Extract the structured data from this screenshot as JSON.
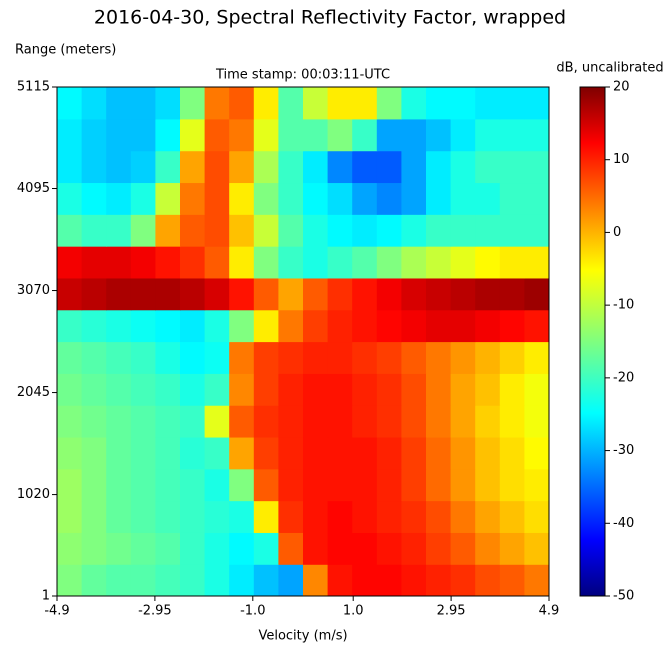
{
  "chart_data": {
    "type": "heatmap",
    "title": "2016-04-30, Spectral Reflectivity Factor, wrapped",
    "subtitle": "Time stamp: 00:03:11-UTC",
    "xlabel": "Velocity (m/s)",
    "ylabel": "Range (meters)",
    "colorbar_label": "dB, uncalibrated",
    "colormap": "jet",
    "xlim": [
      -4.9,
      4.9
    ],
    "xticks": [
      -4.9,
      -2.95,
      {
        "value": -1,
        "label": "-1.0"
      },
      {
        "value": 1,
        "label": "1.0"
      },
      2.95,
      4.9
    ],
    "ylim": [
      1,
      5115
    ],
    "yticks": [
      1,
      1020,
      2045,
      3070,
      4095,
      5115
    ],
    "clim": [
      -50,
      20
    ],
    "cticks": [
      -50,
      -40,
      -30,
      -20,
      -10,
      0,
      10,
      20
    ],
    "z": [
      [
        -15,
        -17,
        -18,
        -18,
        -19,
        -20,
        -22,
        -25,
        -28,
        -30,
        2,
        10,
        11,
        11,
        10,
        9,
        8,
        6,
        5,
        3
      ],
      [
        -14,
        -15,
        -16,
        -17,
        -18,
        -20,
        -22,
        -24,
        -22,
        5,
        10,
        11,
        11,
        10,
        9,
        7,
        5,
        2,
        0,
        -2
      ],
      [
        -13,
        -15,
        -17,
        -18,
        -19,
        -20,
        -21,
        -22,
        -5,
        8,
        10,
        11,
        10,
        9,
        8,
        6,
        3,
        0,
        -2,
        -4
      ],
      [
        -13,
        -15,
        -17,
        -18,
        -19,
        -20,
        -22,
        -15,
        5,
        9,
        10,
        10,
        10,
        9,
        7,
        4,
        1,
        -2,
        -4,
        -5
      ],
      [
        -14,
        -15,
        -17,
        -18,
        -19,
        -21,
        -20,
        0,
        7,
        9,
        10,
        10,
        10,
        9,
        7,
        4,
        1,
        -2,
        -4,
        -6
      ],
      [
        -15,
        -16,
        -17,
        -18,
        -19,
        -20,
        -8,
        5,
        8,
        9,
        10,
        10,
        9,
        8,
        6,
        3,
        0,
        -3,
        -5,
        -7
      ],
      [
        -16,
        -17,
        -18,
        -19,
        -20,
        -22,
        -20,
        2,
        7,
        9,
        10,
        10,
        9,
        8,
        6,
        3,
        0,
        -2,
        -5,
        -7
      ],
      [
        -17,
        -18,
        -19,
        -20,
        -22,
        -24,
        -23,
        3,
        7,
        8,
        9,
        9,
        8,
        7,
        5,
        3,
        1,
        -1,
        -3,
        -5
      ],
      [
        -20,
        -21,
        -22,
        -23,
        -24,
        -25,
        -22,
        -15,
        -5,
        3,
        7,
        9,
        10,
        11,
        12,
        13,
        13,
        12,
        11,
        10
      ],
      [
        15,
        16,
        17,
        17,
        17,
        16,
        14,
        10,
        5,
        0,
        5,
        8,
        10,
        12,
        14,
        15,
        16,
        17,
        17,
        18
      ],
      [
        12,
        13,
        13,
        12,
        10,
        8,
        5,
        -5,
        -15,
        -20,
        -22,
        -20,
        -18,
        -15,
        -12,
        -10,
        -8,
        -6,
        -5,
        -5
      ],
      [
        -18,
        -20,
        -20,
        -15,
        0,
        5,
        6,
        -2,
        -10,
        -18,
        -22,
        -24,
        -25,
        -24,
        -22,
        -20,
        -20,
        -20,
        -20,
        -20
      ],
      [
        -22,
        -24,
        -25,
        -22,
        -10,
        3,
        6,
        -5,
        -15,
        -20,
        -24,
        -26,
        -30,
        -32,
        -30,
        -25,
        -22,
        -22,
        -20,
        -20
      ],
      [
        -25,
        -27,
        -28,
        -27,
        -20,
        0,
        6,
        0,
        -12,
        -20,
        -25,
        -32,
        -35,
        -35,
        -30,
        -25,
        -22,
        -20,
        -20,
        -20
      ],
      [
        -25,
        -27,
        -28,
        -28,
        -24,
        -8,
        5,
        3,
        -8,
        -18,
        -18,
        -15,
        -20,
        -30,
        -30,
        -28,
        -25,
        -22,
        -22,
        -22
      ],
      [
        -24,
        -26,
        -28,
        -28,
        -26,
        -15,
        3,
        5,
        -5,
        -18,
        -10,
        -5,
        -5,
        -15,
        -22,
        -24,
        -24,
        -25,
        -25,
        -25
      ]
    ]
  }
}
